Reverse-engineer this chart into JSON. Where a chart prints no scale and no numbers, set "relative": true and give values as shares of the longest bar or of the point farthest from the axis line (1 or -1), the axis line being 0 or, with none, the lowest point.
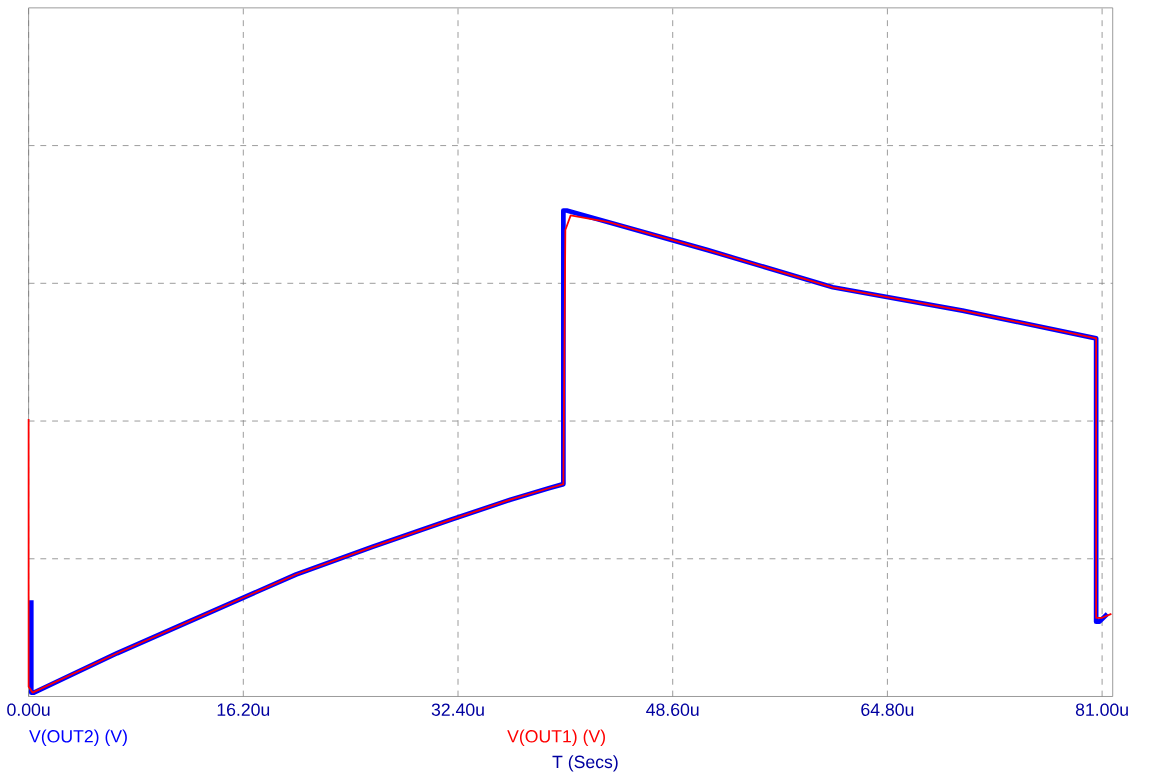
{
  "chart_data": {
    "type": "line",
    "xlabel": "T (Secs)",
    "relative": true,
    "grid": true,
    "legend": "bottom left",
    "marker": "none",
    "line_style": "solid",
    "xlim": [
      0,
      81.8
    ],
    "xticks": [
      {
        "value": 0,
        "label": "0.00u"
      },
      {
        "value": 16.2,
        "label": "16.20u"
      },
      {
        "value": 32.4,
        "label": "32.40u"
      },
      {
        "value": 48.6,
        "label": "48.60u"
      },
      {
        "value": 64.8,
        "label": "64.80u"
      },
      {
        "value": 81,
        "label": "81.00u"
      }
    ],
    "series": [
      {
        "name": "V(OUT2) (V)",
        "color": "#0000ff",
        "x": [
          0.2,
          0.2,
          0.4,
          6.68,
          14.09,
          20.18,
          25.96,
          31.9,
          36.35,
          39.31,
          40.35,
          40.35,
          40.6,
          43.76,
          51.18,
          60.68,
          70.47,
          80.55,
          80.55,
          80.8,
          81.4
        ],
        "values": [
          0.198,
          0.008,
          0.008,
          0.089,
          0.178,
          0.251,
          0.308,
          0.364,
          0.405,
          0.429,
          0.437,
          1.0,
          1.0,
          0.976,
          0.919,
          0.842,
          0.794,
          0.737,
          0.154,
          0.154,
          0.17
        ]
      },
      {
        "name": "V(OUT1) (V)",
        "color": "#ff0000",
        "x": [
          0,
          0,
          0.3,
          6.68,
          14.09,
          20.18,
          25.96,
          31.9,
          36.35,
          39.31,
          40.35,
          40.5,
          40.9,
          43.76,
          51.18,
          60.68,
          70.47,
          80.55,
          80.55,
          81.0,
          81.7
        ],
        "values": [
          0.571,
          0.02,
          0.008,
          0.089,
          0.178,
          0.251,
          0.308,
          0.364,
          0.405,
          0.429,
          0.437,
          0.96,
          0.99,
          0.976,
          0.919,
          0.842,
          0.794,
          0.737,
          0.162,
          0.162,
          0.17
        ]
      }
    ]
  }
}
